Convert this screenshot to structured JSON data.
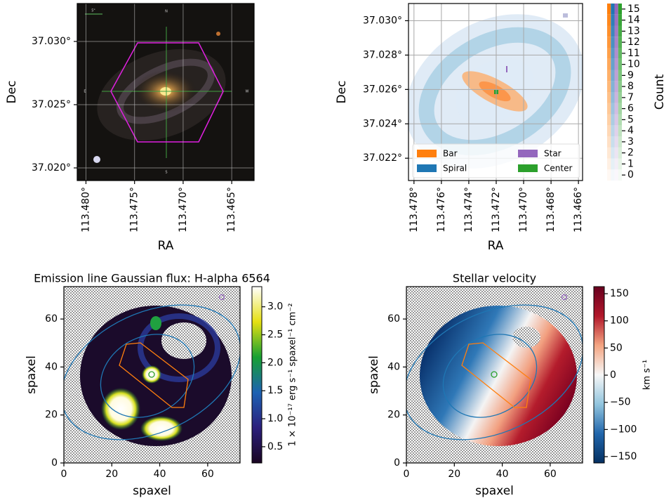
{
  "chart_data": [
    {
      "type": "image",
      "xlabel": "RA",
      "ylabel": "Dec",
      "xlim": [
        113.4809,
        113.4627
      ],
      "ylim": [
        37.019,
        37.033
      ],
      "xticks": [
        {
          "value": 113.48,
          "label": "113.480°"
        },
        {
          "value": 113.475,
          "label": "113.475°"
        },
        {
          "value": 113.47,
          "label": "113.470°"
        },
        {
          "value": 113.465,
          "label": "113.465°"
        }
      ],
      "yticks": [
        {
          "value": 37.02,
          "label": "37.020°"
        },
        {
          "value": 37.025,
          "label": "37.025°"
        },
        {
          "value": 37.03,
          "label": "37.030°"
        }
      ],
      "grid": true,
      "annotations": [
        "N",
        "S",
        "E",
        "W",
        "5\""
      ]
    },
    {
      "type": "image",
      "xlabel": "RA",
      "ylabel": "Dec",
      "xlim": [
        113.4784,
        113.4657
      ],
      "ylim": [
        37.0207,
        37.031
      ],
      "xticks": [
        {
          "value": 113.478,
          "label": "113.478°"
        },
        {
          "value": 113.476,
          "label": "113.476°"
        },
        {
          "value": 113.474,
          "label": "113.474°"
        },
        {
          "value": 113.472,
          "label": "113.472°"
        },
        {
          "value": 113.47,
          "label": "113.470°"
        },
        {
          "value": 113.468,
          "label": "113.468°"
        },
        {
          "value": 113.466,
          "label": "113.466°"
        }
      ],
      "yticks": [
        {
          "value": 37.022,
          "label": "37.022°"
        },
        {
          "value": 37.024,
          "label": "37.024°"
        },
        {
          "value": 37.026,
          "label": "37.026°"
        },
        {
          "value": 37.028,
          "label": "37.028°"
        },
        {
          "value": 37.03,
          "label": "37.030°"
        }
      ],
      "grid": true,
      "legend": {
        "location": "lower center",
        "items": [
          {
            "name": "Bar",
            "color": "#ff7f0e"
          },
          {
            "name": "Spiral",
            "color": "#1f77b4"
          },
          {
            "name": "Star",
            "color": "#9467bd"
          },
          {
            "name": "Center",
            "color": "#2ca02c"
          }
        ]
      },
      "colorbar": {
        "label": "Count",
        "discrete": true,
        "lim": [
          -0.5,
          15.5
        ],
        "ticks": [
          0,
          1,
          2,
          3,
          4,
          5,
          6,
          7,
          8,
          9,
          10,
          11,
          12,
          13,
          14,
          15
        ],
        "colors": [
          "#ff7f0e",
          "#1f77b4",
          "#9467bd",
          "#2ca02c"
        ]
      }
    },
    {
      "type": "image",
      "title": "Emission line Gaussian flux: H-alpha 6564",
      "xlabel": "spaxel",
      "ylabel": "spaxel",
      "xlim": [
        0,
        73.5
      ],
      "ylim": [
        0,
        73.5
      ],
      "xticks": [
        0,
        20,
        40,
        60
      ],
      "yticks": [
        0,
        20,
        40,
        60
      ],
      "grid": false,
      "colorbar": {
        "label": "1 × 10⁻¹⁷ erg s⁻¹ spaxel⁻¹ cm⁻²",
        "discrete": false,
        "lim": [
          0.21,
          3.36
        ],
        "ticks": [
          {
            "value": 0.5,
            "label": "0.5"
          },
          {
            "value": 1,
            "label": "1.0"
          },
          {
            "value": 1.5,
            "label": "1.5"
          },
          {
            "value": 2,
            "label": "2.0"
          },
          {
            "value": 2.5,
            "label": "2.5"
          },
          {
            "value": 3,
            "label": "3.0"
          }
        ],
        "colors": [
          "#1a0522",
          "#2b1f7c",
          "#1d62b3",
          "#17a032",
          "#e6e012",
          "#ffffff"
        ]
      }
    },
    {
      "type": "image",
      "title": "Stellar velocity",
      "xlabel": "spaxel",
      "ylabel": "spaxel",
      "xlim": [
        0,
        73.5
      ],
      "ylim": [
        0,
        73.5
      ],
      "xticks": [
        0,
        20,
        40,
        60
      ],
      "yticks": [
        0,
        20,
        40,
        60
      ],
      "grid": false,
      "colorbar": {
        "label": "km s⁻¹",
        "discrete": false,
        "lim": [
          -161.6,
          163
        ],
        "ticks": [
          150,
          100,
          50,
          0,
          {
            "value": -50,
            "label": "−50"
          },
          {
            "value": -100,
            "label": "−100"
          },
          {
            "value": -150,
            "label": "−150"
          }
        ],
        "colors": [
          "#053061",
          "#2166ac",
          "#92c5de",
          "#f7f7f7",
          "#f4a582",
          "#b2182b",
          "#67001f"
        ]
      }
    }
  ]
}
